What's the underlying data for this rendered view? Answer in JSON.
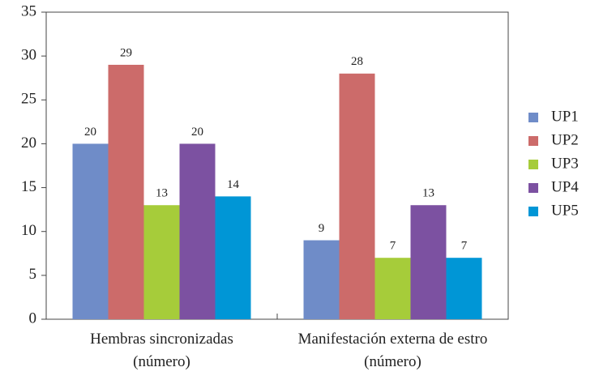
{
  "chart_data": {
    "type": "bar",
    "categories": [
      "Hembras sincronizadas (número)",
      "Manifestación externa de estro (número)"
    ],
    "series": [
      {
        "name": "UP1",
        "color": "#6f8cc8",
        "values": [
          20,
          9
        ]
      },
      {
        "name": "UP2",
        "color": "#cc6b6a",
        "values": [
          29,
          28
        ]
      },
      {
        "name": "UP3",
        "color": "#a6cc3a",
        "values": [
          13,
          7
        ]
      },
      {
        "name": "UP4",
        "color": "#7c51a1",
        "values": [
          20,
          13
        ]
      },
      {
        "name": "UP5",
        "color": "#0096d6",
        "values": [
          14,
          7
        ]
      }
    ],
    "ylim": [
      0,
      35
    ],
    "yticks": [
      0,
      5,
      10,
      15,
      20,
      25,
      30,
      35
    ],
    "grid": false,
    "legend": "right"
  }
}
